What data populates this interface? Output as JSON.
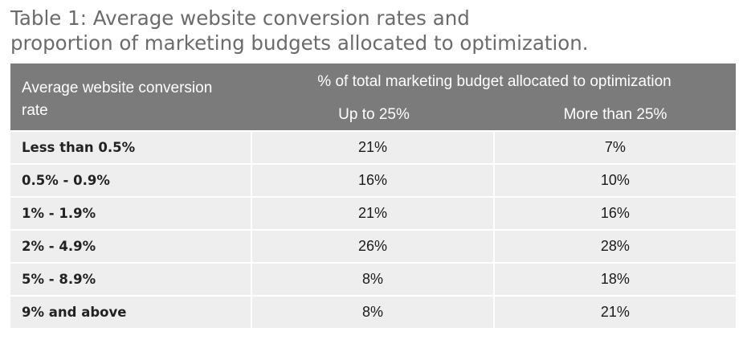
{
  "title": {
    "line1": "Table 1: Average website conversion rates and",
    "line2": "proportion of marketing budgets allocated to optimization."
  },
  "table": {
    "row_header": "Average website conversion rate",
    "span_header": "% of total marketing budget allocated to optimization",
    "columns": [
      "Up to 25%",
      "More than 25%"
    ],
    "rows": [
      {
        "label": "Less than 0.5%",
        "values": [
          "21%",
          "7%"
        ]
      },
      {
        "label": "0.5% - 0.9%",
        "values": [
          "16%",
          "10%"
        ]
      },
      {
        "label": "1% - 1.9%",
        "values": [
          "21%",
          "16%"
        ]
      },
      {
        "label": "2% - 4.9%",
        "values": [
          "26%",
          "28%"
        ]
      },
      {
        "label": "5% - 8.9%",
        "values": [
          "8%",
          "18%"
        ]
      },
      {
        "label": "9% and above",
        "values": [
          "8%",
          "21%"
        ]
      }
    ]
  },
  "colors": {
    "header_bg": "#7b7b7b",
    "cell_bg": "#eeeeee",
    "title_text": "#6b6b6b"
  }
}
